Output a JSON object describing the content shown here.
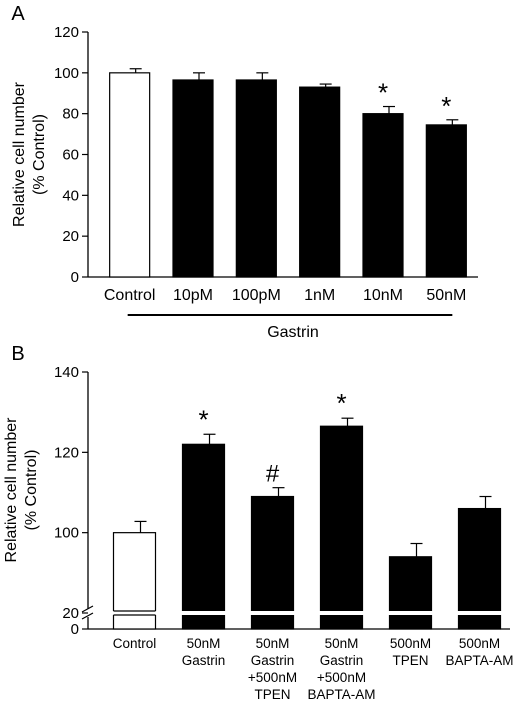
{
  "chart_data": [
    {
      "panel_label": "A",
      "type": "bar",
      "ylabel_line1": "Relative cell number",
      "ylabel_line2": "(% Control)",
      "ylim": [
        0,
        120
      ],
      "yticks": [
        "0",
        "20",
        "40",
        "60",
        "80",
        "100",
        "120"
      ],
      "categories": [
        "Control",
        "10pM",
        "100pM",
        "1nM",
        "10nM",
        "50nM"
      ],
      "values": [
        100,
        96.5,
        96.5,
        93,
        80,
        74.5
      ],
      "errors": [
        2,
        3.5,
        3.5,
        1.5,
        3.5,
        2.5
      ],
      "fill": [
        "white",
        "black",
        "black",
        "black",
        "black",
        "black"
      ],
      "annotations": [
        "",
        "",
        "",
        "",
        "*",
        "*"
      ],
      "group_label": "Gastrin"
    },
    {
      "panel_label": "B",
      "type": "bar",
      "ylabel_line1": "Relative cell number",
      "ylabel_line2": "(% Control)",
      "ylim": [
        0,
        140
      ],
      "axis_break": [
        20,
        80
      ],
      "yticks": [
        "0",
        "20",
        "100",
        "120",
        "140"
      ],
      "categories": [
        [
          "Control"
        ],
        [
          "50nM",
          "Gastrin"
        ],
        [
          "50nM",
          "Gastrin",
          "+500nM",
          "TPEN"
        ],
        [
          "50nM",
          "Gastrin",
          "+500nM",
          "BAPTA-AM"
        ],
        [
          "500nM",
          "TPEN"
        ],
        [
          "500nM",
          "BAPTA-AM"
        ]
      ],
      "values": [
        100,
        122,
        109,
        126.5,
        94,
        106
      ],
      "errors": [
        2.8,
        2.5,
        2.2,
        2,
        3.3,
        3
      ],
      "fill": [
        "white",
        "black",
        "black",
        "black",
        "black",
        "black"
      ],
      "annotations": [
        "",
        "*",
        "#",
        "*",
        "",
        ""
      ]
    }
  ],
  "colors": {
    "bar_fill": "#000000",
    "control_fill": "#ffffff",
    "stroke": "#000000"
  }
}
